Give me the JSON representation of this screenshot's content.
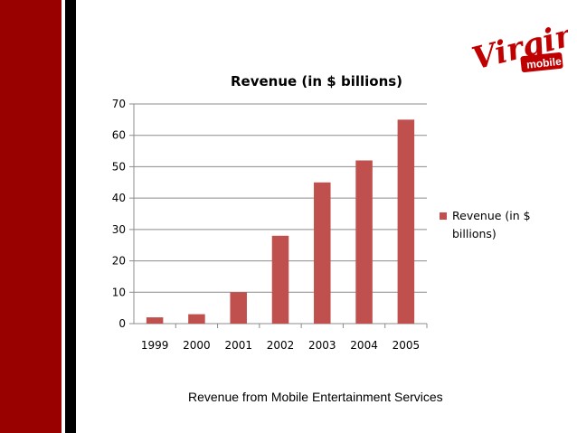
{
  "slide": {
    "caption": "Revenue from Mobile Entertainment Services",
    "colors": {
      "side_band_red": "#990000",
      "side_band_black": "#000000",
      "bar": "#c0504d"
    }
  },
  "logo": {
    "script_text": "Virgin",
    "badge_text": "mobile"
  },
  "chart_data": {
    "type": "bar",
    "title": "Revenue (in $ billions)",
    "categories": [
      "1999",
      "2000",
      "2001",
      "2002",
      "2003",
      "2004",
      "2005"
    ],
    "series": [
      {
        "name": "Revenue (in $ billions)",
        "values": [
          2,
          3,
          10,
          28,
          45,
          52,
          65
        ]
      }
    ],
    "legend": {
      "position": "right",
      "lines": [
        "Revenue (in $",
        "billions)"
      ]
    },
    "ylim": [
      0,
      70
    ],
    "yticks": [
      0,
      10,
      20,
      30,
      40,
      50,
      60,
      70
    ],
    "grid": true
  }
}
